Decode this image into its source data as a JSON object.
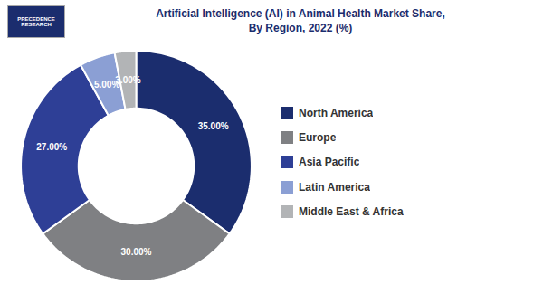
{
  "chart_data": {
    "type": "pie",
    "title": "Artificial Intelligence (AI) in Animal Health Market Share,\nBy Region, 2022 (%)",
    "categories": [
      "North America",
      "Europe",
      "Asia Pacific",
      "Latin America",
      "Middle East & Africa"
    ],
    "values": [
      35.0,
      30.0,
      27.0,
      5.0,
      3.0
    ],
    "value_labels": [
      "35.00%",
      "30.00%",
      "27.00%",
      "5.00%",
      "3.00%"
    ],
    "colors": [
      "#1b2d6e",
      "#7f8083",
      "#2e3f96",
      "#8b9fd4",
      "#b2b4b6"
    ],
    "data_labels": true,
    "legend": "right",
    "tick_labels": false,
    "annotations": [
      "PRECEDENCE",
      "RESEARCH"
    ]
  }
}
